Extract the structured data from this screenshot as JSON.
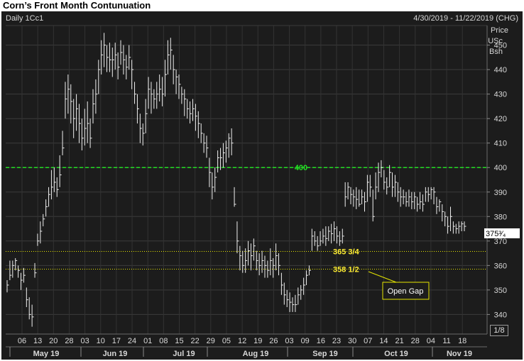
{
  "title": "Corn’s Front Month Contunuation",
  "header": {
    "left": "Daily 1Cc1",
    "right": "4/30/2019 - 11/22/2019 (CHG)"
  },
  "y_unit_lines": [
    "Price",
    "USc",
    "Bsh"
  ],
  "fraction_label": "1/8",
  "colors": {
    "background": "#1c1c1c",
    "bars": "#f0f0f0",
    "line_400": "#22dd22",
    "gap_lines": "#e6e600",
    "label_400": "#22dd22",
    "gap_labels": "#ffee33",
    "callout_border": "#e6e600",
    "callout_text": "#ffffff"
  },
  "chart_data": {
    "type": "ohlc",
    "title": "Corn’s Front Month Contunuation",
    "subtitle": "Daily 1Cc1",
    "date_range": "4/30/2019 - 11/22/2019 (CHG)",
    "ylabel": "Price USc Bsh",
    "ylim": [
      332,
      458
    ],
    "y_ticks": [
      340,
      350,
      360,
      370,
      380,
      390,
      400,
      410,
      420,
      430,
      440,
      450
    ],
    "x_day_ticks": [
      "06",
      "13",
      "20",
      "28",
      "03",
      "10",
      "17",
      "24",
      "01",
      "08",
      "15",
      "22",
      "29",
      "05",
      "12",
      "19",
      "26",
      "03",
      "09",
      "16",
      "23",
      "30",
      "07",
      "14",
      "21",
      "28",
      "04",
      "11",
      "18"
    ],
    "x_month_labels": [
      "May 19",
      "Jun 19",
      "Jul 19",
      "Aug 19",
      "Sep 19",
      "Oct 19",
      "Nov 19"
    ],
    "last_price_label": "375³⁄₄",
    "last_price": 375.75,
    "reference_lines": [
      {
        "label": "400",
        "value": 400,
        "style": "dashed"
      },
      {
        "label": "365 3/4",
        "value": 365.75,
        "style": "dotted"
      },
      {
        "label": "358 1/2",
        "value": 358.5,
        "style": "dotted"
      }
    ],
    "annotation": "Open Gap",
    "bars": [
      [
        352,
        349,
        354
      ],
      [
        356,
        354,
        362
      ],
      [
        360,
        355,
        362
      ],
      [
        362,
        358,
        363
      ],
      [
        358,
        355,
        360
      ],
      [
        354,
        350,
        357
      ],
      [
        356,
        353,
        359
      ],
      [
        346,
        343,
        351
      ],
      [
        340,
        338,
        347
      ],
      [
        339,
        335,
        344
      ],
      [
        357,
        355,
        361
      ],
      [
        370,
        368,
        373
      ],
      [
        374,
        369,
        378
      ],
      [
        379,
        376,
        381
      ],
      [
        384,
        380,
        387
      ],
      [
        389,
        384,
        392
      ],
      [
        392,
        387,
        399
      ],
      [
        394,
        390,
        400
      ],
      [
        391,
        388,
        396
      ],
      [
        397,
        392,
        405
      ],
      [
        408,
        405,
        415
      ],
      [
        428,
        420,
        435
      ],
      [
        432,
        422,
        438
      ],
      [
        427,
        418,
        434
      ],
      [
        420,
        412,
        428
      ],
      [
        424,
        415,
        430
      ],
      [
        418,
        410,
        426
      ],
      [
        412,
        407,
        420
      ],
      [
        416,
        409,
        424
      ],
      [
        418,
        410,
        427
      ],
      [
        412,
        408,
        420
      ],
      [
        426,
        418,
        432
      ],
      [
        430,
        422,
        436
      ],
      [
        440,
        430,
        444
      ],
      [
        446,
        438,
        452
      ],
      [
        450,
        441,
        455
      ],
      [
        445,
        439,
        450
      ],
      [
        444,
        439,
        451
      ],
      [
        444,
        437,
        449
      ],
      [
        446,
        440,
        451
      ],
      [
        441,
        436,
        447
      ],
      [
        447,
        442,
        452
      ],
      [
        444,
        438,
        450
      ],
      [
        441,
        436,
        446
      ],
      [
        445,
        440,
        450
      ],
      [
        440,
        432,
        444
      ],
      [
        430,
        426,
        435
      ],
      [
        424,
        418,
        430
      ],
      [
        416,
        410,
        422
      ],
      [
        414,
        409,
        418
      ],
      [
        422,
        414,
        428
      ],
      [
        432,
        424,
        437
      ],
      [
        430,
        422,
        435
      ],
      [
        428,
        424,
        432
      ],
      [
        430,
        424,
        435
      ],
      [
        432,
        427,
        438
      ],
      [
        430,
        425,
        437
      ],
      [
        438,
        429,
        444
      ],
      [
        446,
        438,
        452
      ],
      [
        448,
        440,
        453
      ],
      [
        440,
        434,
        446
      ],
      [
        437,
        430,
        440
      ],
      [
        434,
        428,
        438
      ],
      [
        430,
        426,
        433
      ],
      [
        428,
        421,
        432
      ],
      [
        424,
        420,
        428
      ],
      [
        422,
        418,
        427
      ],
      [
        424,
        419,
        428
      ],
      [
        421,
        415,
        426
      ],
      [
        418,
        412,
        423
      ],
      [
        414,
        410,
        418
      ],
      [
        410,
        406,
        414
      ],
      [
        408,
        404,
        413
      ],
      [
        398,
        392,
        404
      ],
      [
        392,
        387,
        398
      ],
      [
        396,
        390,
        400
      ],
      [
        404,
        398,
        407
      ],
      [
        404,
        399,
        408
      ],
      [
        406,
        400,
        410
      ],
      [
        408,
        402,
        411
      ],
      [
        412,
        404,
        414
      ],
      [
        410,
        405,
        416
      ],
      [
        385,
        384,
        392
      ],
      [
        370,
        365,
        378
      ],
      [
        364,
        358,
        368
      ],
      [
        360,
        357,
        366
      ],
      [
        362,
        357,
        367
      ],
      [
        366,
        360,
        370
      ],
      [
        364,
        358,
        369
      ],
      [
        368,
        362,
        371
      ],
      [
        362,
        358,
        366
      ],
      [
        360,
        356,
        365
      ],
      [
        362,
        357,
        366
      ],
      [
        360,
        355,
        364
      ],
      [
        358,
        355,
        362
      ],
      [
        362,
        356,
        367
      ],
      [
        360,
        355,
        363
      ],
      [
        364,
        358,
        369
      ],
      [
        360,
        356,
        365
      ],
      [
        352,
        348,
        357
      ],
      [
        348,
        344,
        353
      ],
      [
        346,
        343,
        350
      ],
      [
        345,
        341,
        349
      ],
      [
        344,
        341,
        347
      ],
      [
        344,
        341,
        348
      ],
      [
        348,
        344,
        351
      ],
      [
        350,
        346,
        352
      ],
      [
        352,
        348,
        355
      ],
      [
        356,
        352,
        358
      ],
      [
        358,
        356,
        360
      ],
      [
        372,
        366,
        375
      ],
      [
        370,
        368,
        374
      ],
      [
        368,
        366,
        372
      ],
      [
        370,
        368,
        374
      ],
      [
        372,
        369,
        375
      ],
      [
        371,
        368,
        376
      ],
      [
        374,
        370,
        376
      ],
      [
        373,
        369,
        377
      ],
      [
        375,
        370,
        378
      ],
      [
        372,
        369,
        376
      ],
      [
        370,
        368,
        374
      ],
      [
        372,
        369,
        375
      ],
      [
        388,
        384,
        394
      ],
      [
        392,
        387,
        394
      ],
      [
        389,
        385,
        392
      ],
      [
        388,
        384,
        391
      ],
      [
        387,
        383,
        392
      ],
      [
        385,
        384,
        391
      ],
      [
        388,
        385,
        391
      ],
      [
        386,
        382,
        390
      ],
      [
        394,
        386,
        397
      ],
      [
        392,
        388,
        397
      ],
      [
        380,
        378,
        391
      ],
      [
        392,
        387,
        398
      ],
      [
        398,
        390,
        402
      ],
      [
        400,
        396,
        403
      ],
      [
        394,
        391,
        399
      ],
      [
        392,
        389,
        396
      ],
      [
        398,
        392,
        401
      ],
      [
        392,
        388,
        398
      ],
      [
        394,
        388,
        397
      ],
      [
        390,
        386,
        394
      ],
      [
        388,
        384,
        392
      ],
      [
        388,
        385,
        391
      ],
      [
        386,
        384,
        390
      ],
      [
        388,
        384,
        391
      ],
      [
        386,
        383,
        390
      ],
      [
        388,
        383,
        390
      ],
      [
        385,
        382,
        388
      ],
      [
        386,
        383,
        390
      ],
      [
        385,
        382,
        389
      ],
      [
        390,
        386,
        392
      ],
      [
        389,
        386,
        392
      ],
      [
        391,
        387,
        392
      ],
      [
        390,
        385,
        392
      ],
      [
        384,
        381,
        388
      ],
      [
        386,
        382,
        387
      ],
      [
        382,
        378,
        385
      ],
      [
        380,
        376,
        382
      ],
      [
        376,
        373,
        380
      ],
      [
        380,
        374,
        384
      ],
      [
        376,
        373,
        378
      ],
      [
        375,
        373,
        377
      ],
      [
        376,
        373,
        378
      ],
      [
        377,
        374,
        378
      ],
      [
        376,
        374,
        378
      ]
    ]
  }
}
